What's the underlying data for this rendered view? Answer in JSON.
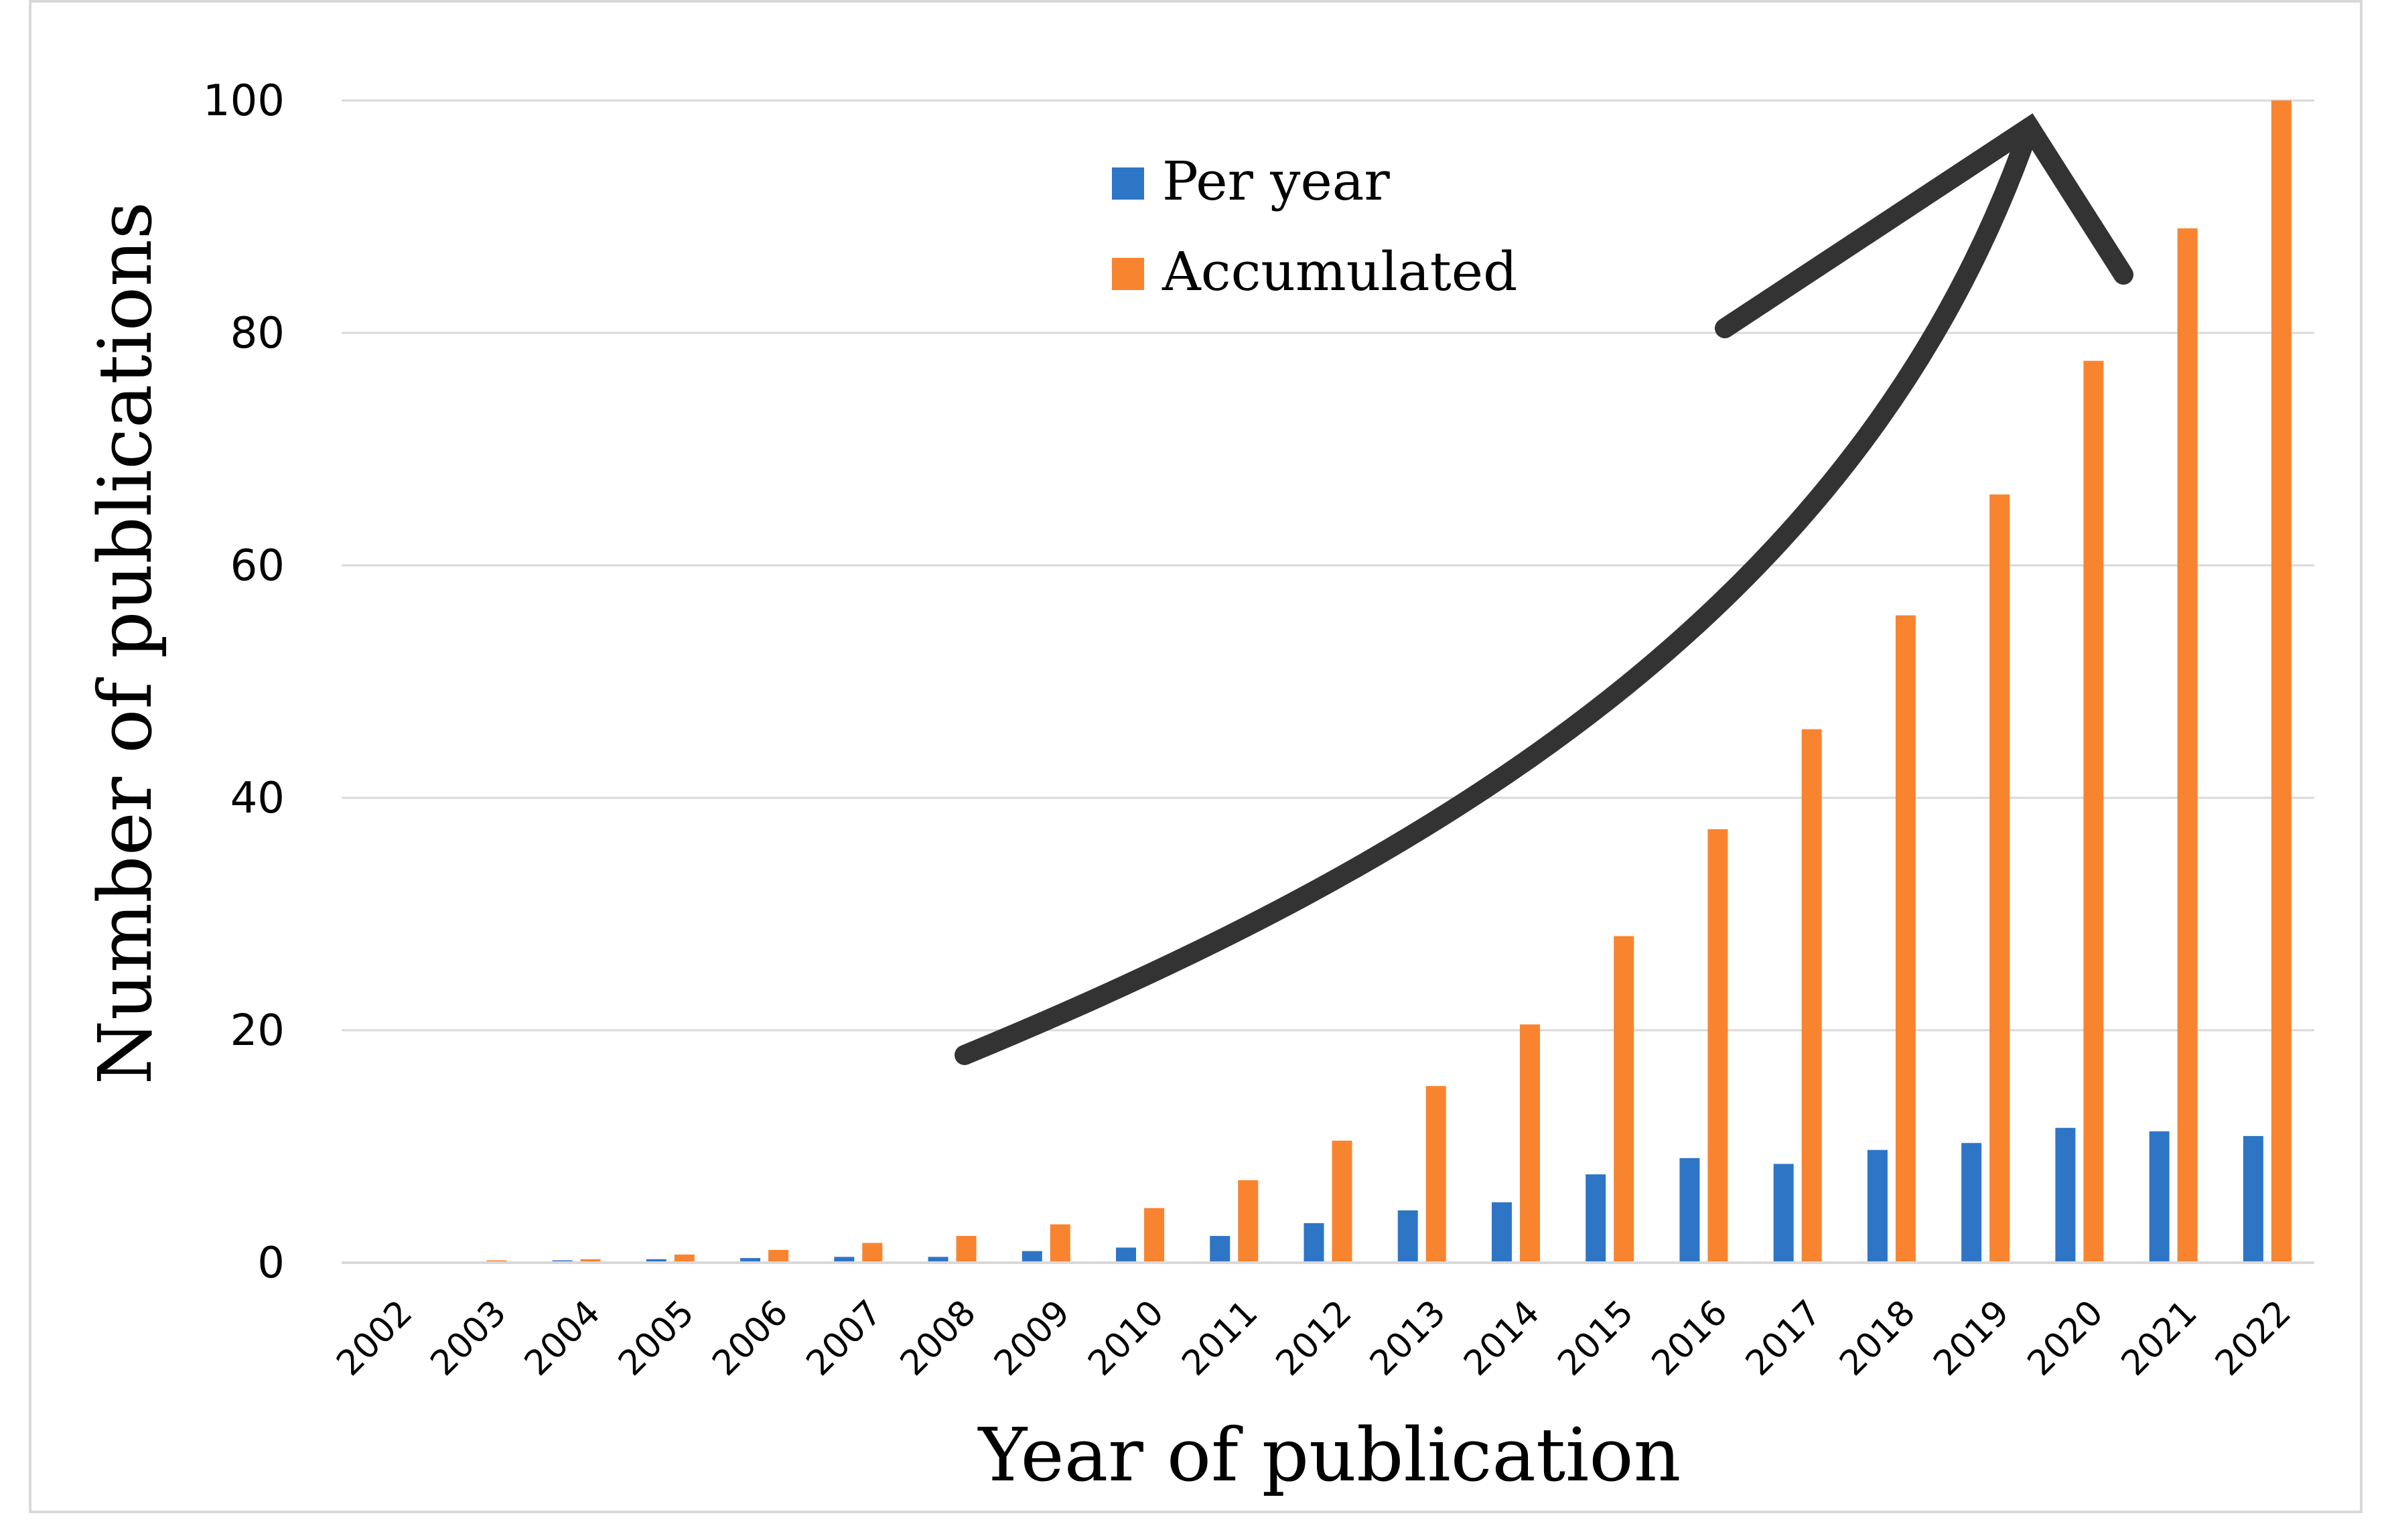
{
  "chart_data": {
    "type": "bar",
    "title": "",
    "xlabel": "Year of publication",
    "ylabel": "Number of publications",
    "ylim": [
      0,
      100
    ],
    "yticks": [
      0,
      20,
      40,
      60,
      80,
      100
    ],
    "grid": true,
    "legend_position": "top-center",
    "categories": [
      "2002",
      "2003",
      "2004",
      "2005",
      "2006",
      "2007",
      "2008",
      "2009",
      "2010",
      "2011",
      "2012",
      "2013",
      "2014",
      "2015",
      "2016",
      "2017",
      "2018",
      "2019",
      "2020",
      "2021",
      "2022"
    ],
    "series": [
      {
        "name": "Per year",
        "color": "#2e75c6",
        "values": [
          0,
          0.1,
          0.2,
          0.3,
          0.4,
          0.5,
          0.5,
          1.0,
          1.3,
          2.3,
          3.4,
          4.5,
          5.2,
          7.6,
          9.0,
          8.5,
          9.7,
          10.3,
          11.6,
          11.3,
          10.9
        ]
      },
      {
        "name": "Accumulated",
        "color": "#f98430",
        "values": [
          0,
          0.2,
          0.3,
          0.7,
          1.1,
          1.7,
          2.3,
          3.3,
          4.7,
          7.1,
          10.5,
          15.2,
          20.5,
          28.1,
          37.3,
          45.9,
          55.7,
          66.1,
          77.6,
          89.0,
          100.0
        ]
      }
    ],
    "annotation": "growth-arrow"
  }
}
